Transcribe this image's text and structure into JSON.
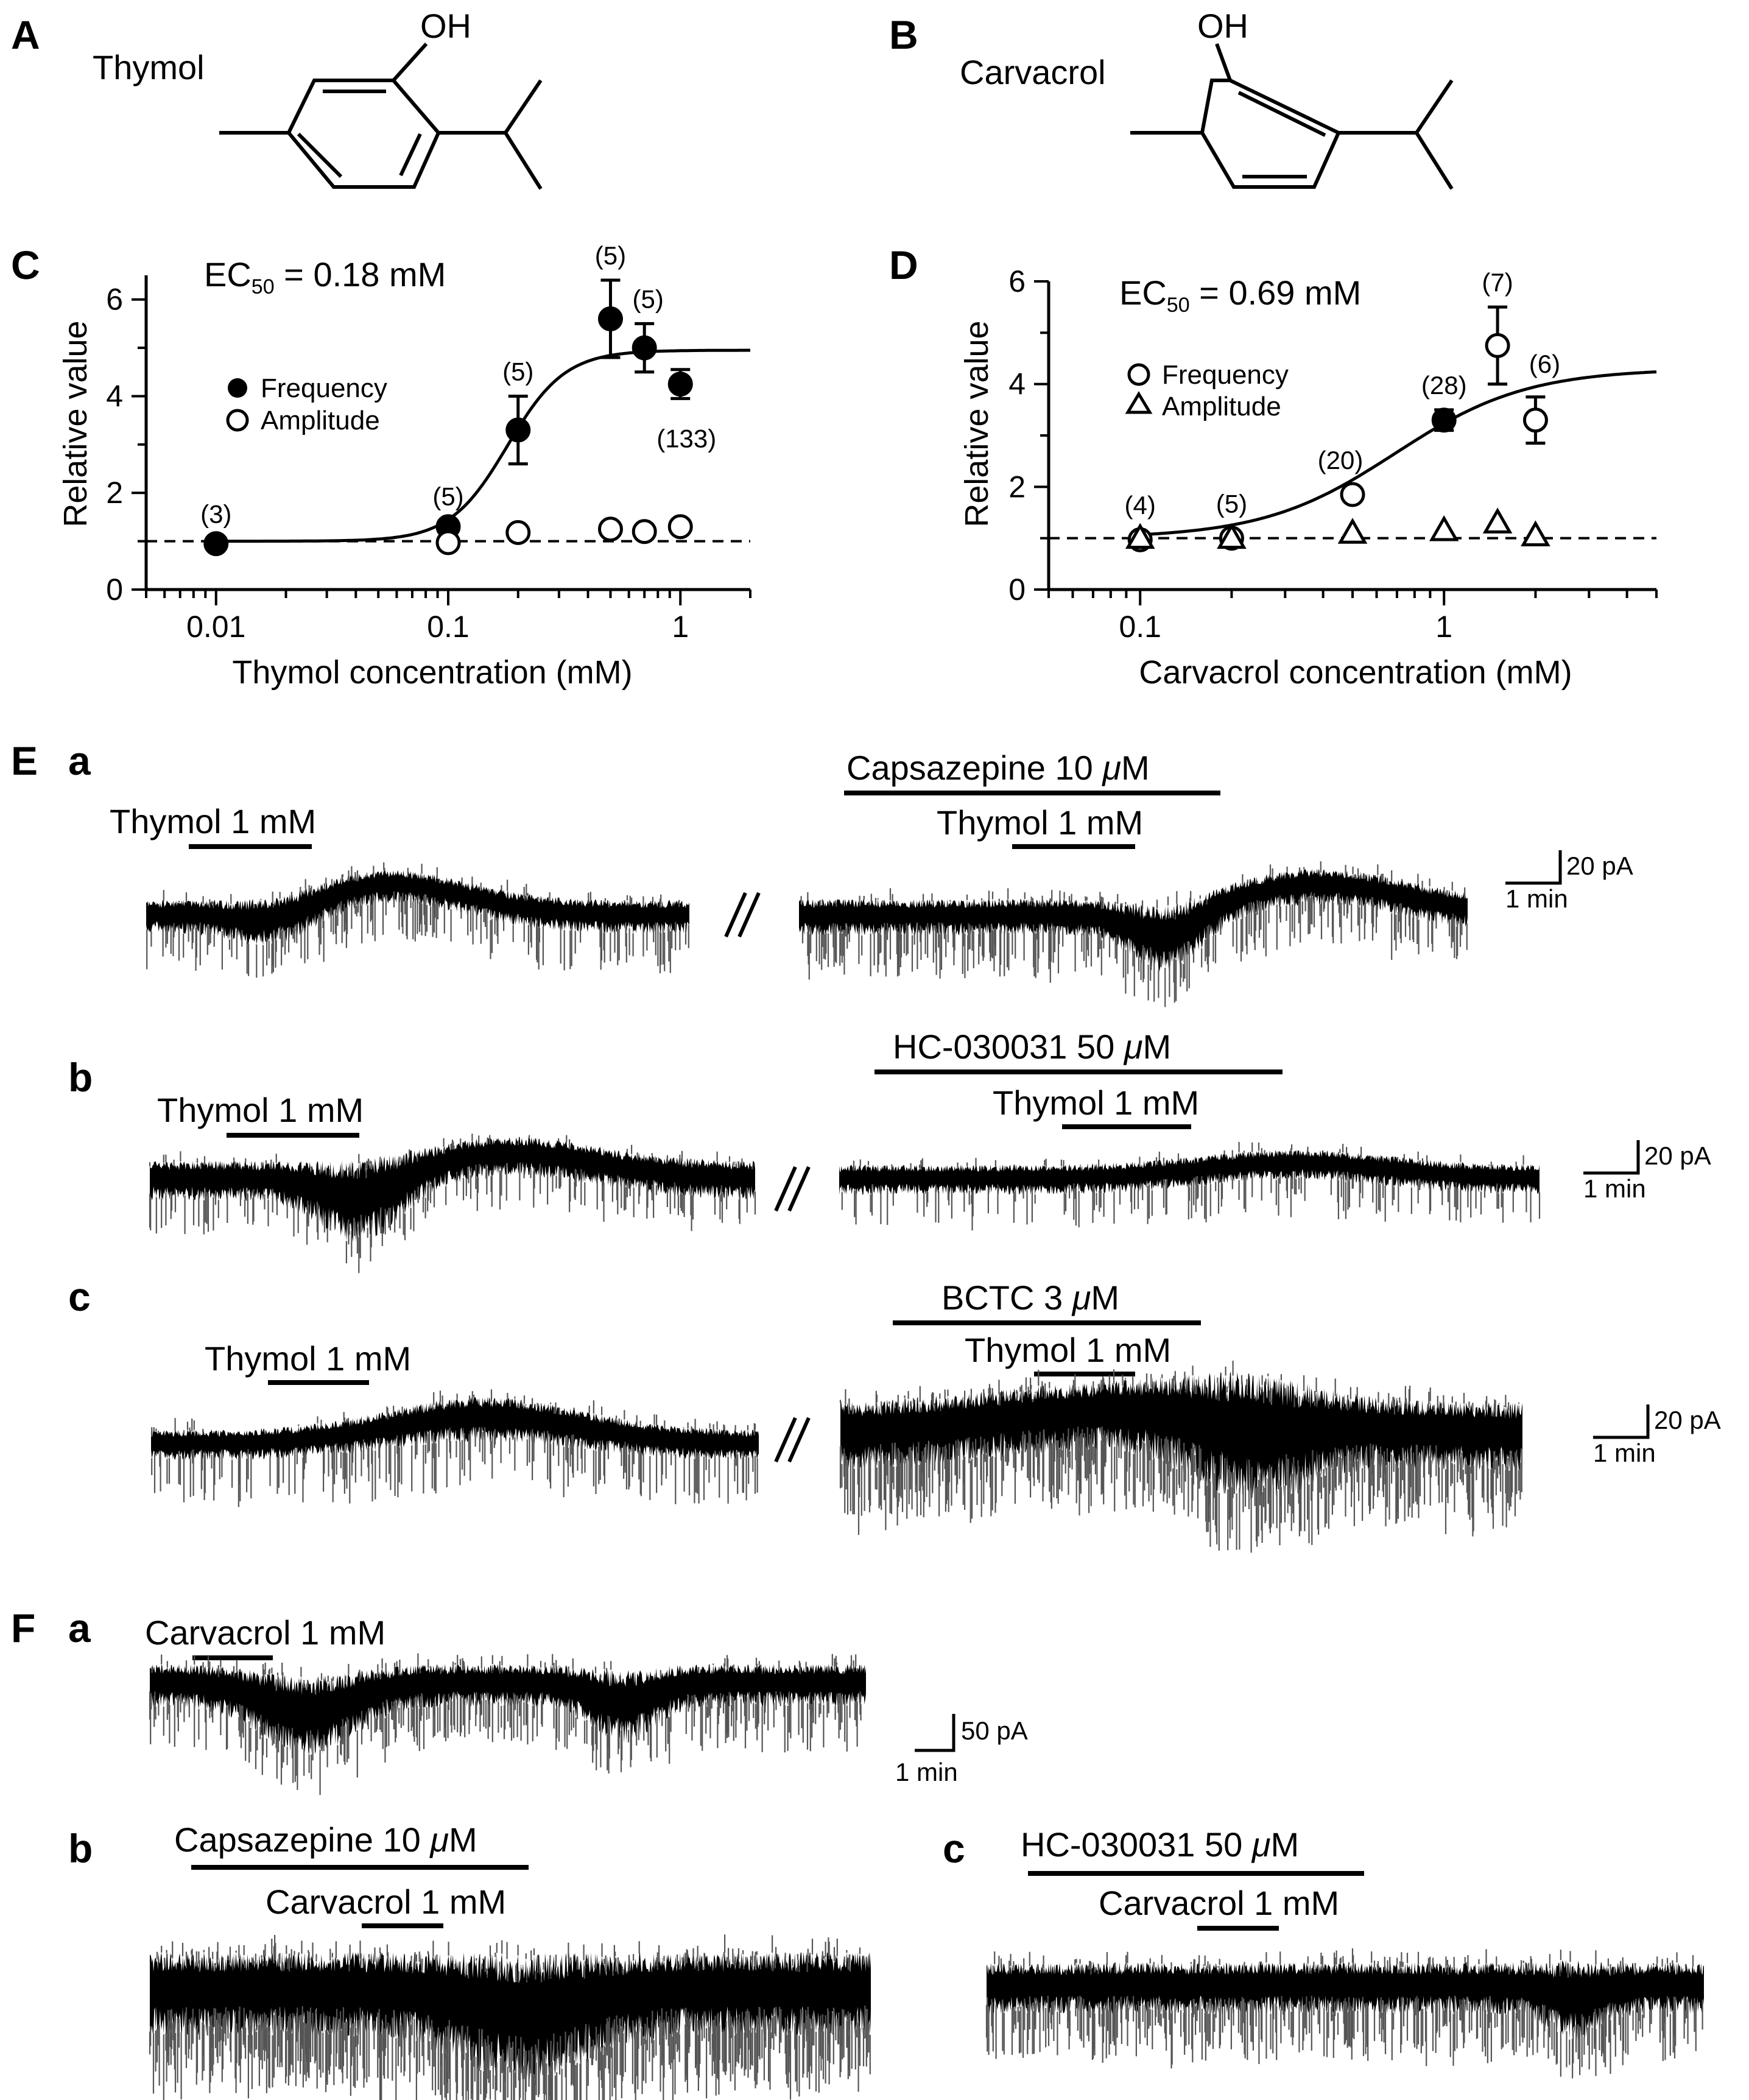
{
  "panel_labels": {
    "A": "A",
    "B": "B",
    "C": "C",
    "D": "D",
    "E": "E",
    "F": "F",
    "a": "a",
    "b": "b",
    "c": "c"
  },
  "structures": {
    "thymol": {
      "name": "Thymol",
      "oh": "OH"
    },
    "carvacrol": {
      "name": "Carvacrol",
      "oh": "OH"
    }
  },
  "chart_data": [
    {
      "type": "scatter",
      "panel": "C",
      "ec50_label": "EC",
      "ec50_sub": "50",
      "ec50_value": " = 0.18 mM",
      "xlabel": "Thymol concentration (mM)",
      "ylabel": "Relative value",
      "x_scale": "log",
      "xlim": [
        0.005,
        2
      ],
      "ylim": [
        0,
        6.5
      ],
      "xticks": [
        "0.01",
        "0.1",
        "1"
      ],
      "yticks": [
        "0",
        "2",
        "4",
        "6"
      ],
      "legend": [
        "Frequency",
        "Amplitude"
      ],
      "legend_markers": [
        "filled-circle",
        "open-circle"
      ],
      "series": [
        {
          "name": "Frequency",
          "marker": "filled-circle",
          "points": [
            {
              "x": 0.01,
              "y": 0.95,
              "err": 0.1,
              "n": "(3)"
            },
            {
              "x": 0.1,
              "y": 1.3,
              "err": 0.12,
              "n": "(5)"
            },
            {
              "x": 0.2,
              "y": 3.3,
              "err": 0.7,
              "n": "(5)"
            },
            {
              "x": 0.5,
              "y": 5.6,
              "err": 0.8,
              "n": "(5)"
            },
            {
              "x": 0.7,
              "y": 5.0,
              "err": 0.5,
              "n": "(5)"
            },
            {
              "x": 1.0,
              "y": 4.25,
              "err": 0.3,
              "n": "(133)"
            }
          ]
        },
        {
          "name": "Amplitude",
          "marker": "open-circle",
          "points": [
            {
              "x": 0.1,
              "y": 0.97
            },
            {
              "x": 0.2,
              "y": 1.18
            },
            {
              "x": 0.5,
              "y": 1.25
            },
            {
              "x": 0.7,
              "y": 1.2
            },
            {
              "x": 1.0,
              "y": 1.3
            }
          ]
        }
      ],
      "fit": {
        "bottom": 1.0,
        "top": 4.95,
        "ec50": 0.18,
        "hill": 3.5
      },
      "baseline": 1.0
    },
    {
      "type": "scatter",
      "panel": "D",
      "ec50_label": "EC",
      "ec50_sub": "50",
      "ec50_value": " = 0.69 mM",
      "xlabel": "Carvacrol concentration (mM)",
      "ylabel": "Relative value",
      "x_scale": "log",
      "xlim": [
        0.05,
        5
      ],
      "ylim": [
        0,
        6
      ],
      "xticks": [
        "0.1",
        "1"
      ],
      "yticks": [
        "0",
        "2",
        "4",
        "6"
      ],
      "legend": [
        "Frequency",
        "Amplitude"
      ],
      "legend_markers": [
        "open-circle",
        "open-triangle"
      ],
      "series": [
        {
          "name": "Frequency",
          "marker": "open-circle",
          "points": [
            {
              "x": 0.1,
              "y": 0.97,
              "n": "(4)"
            },
            {
              "x": 0.2,
              "y": 1.0,
              "n": "(5)"
            },
            {
              "x": 0.5,
              "y": 1.85,
              "n": "(20)"
            },
            {
              "x": 1.0,
              "y": 3.3,
              "err": 0.2,
              "n": "(28)",
              "filled": true
            },
            {
              "x": 1.5,
              "y": 4.75,
              "err": 0.75,
              "n": "(7)"
            },
            {
              "x": 2.0,
              "y": 3.3,
              "err": 0.45,
              "n": "(6)"
            }
          ]
        },
        {
          "name": "Amplitude",
          "marker": "open-triangle",
          "points": [
            {
              "x": 0.1,
              "y": 1.0
            },
            {
              "x": 0.2,
              "y": 1.0
            },
            {
              "x": 0.5,
              "y": 1.1
            },
            {
              "x": 1.0,
              "y": 1.15
            },
            {
              "x": 1.5,
              "y": 1.3
            },
            {
              "x": 2.0,
              "y": 1.05
            }
          ]
        }
      ],
      "fit": {
        "bottom": 1.0,
        "top": 4.3,
        "ec50": 0.69,
        "hill": 2.0
      },
      "baseline": 1.0
    }
  ],
  "traces": {
    "Ea": {
      "drug1": "Thymol 1 mM",
      "antagonist": "Capsazepine 10 ",
      "antagonist_unit": "μ",
      "antagonist_unit2": "M",
      "drug2": "Thymol 1 mM",
      "scale_y": "20 pA",
      "scale_x": "1 min"
    },
    "Eb": {
      "drug1": "Thymol 1 mM",
      "antagonist": "HC-030031 50 ",
      "antagonist_unit": "μ",
      "antagonist_unit2": "M",
      "drug2": "Thymol 1 mM",
      "scale_y": "20 pA",
      "scale_x": "1 min"
    },
    "Ec": {
      "drug1": "Thymol 1 mM",
      "antagonist": "BCTC 3 ",
      "antagonist_unit": "μ",
      "antagonist_unit2": "M",
      "drug2": "Thymol 1 mM",
      "scale_y": "20 pA",
      "scale_x": "1 min"
    },
    "Fa": {
      "drug1": "Carvacrol 1 mM",
      "scale_y": "50 pA",
      "scale_x": "1 min"
    },
    "Fb": {
      "antagonist": "Capsazepine 10 ",
      "antagonist_unit": "μ",
      "antagonist_unit2": "M",
      "drug2": "Carvacrol 1 mM"
    },
    "Fc": {
      "antagonist": "HC-030031 50 ",
      "antagonist_unit": "μ",
      "antagonist_unit2": "M",
      "drug2": "Carvacrol 1 mM"
    }
  }
}
